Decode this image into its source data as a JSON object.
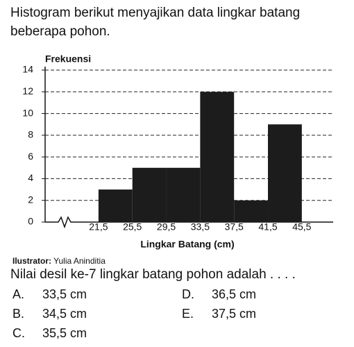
{
  "intro": "Histogram berikut menyajikan data lingkar batang beberapa pohon.",
  "chart_data": {
    "type": "histogram",
    "ylabel": "Frekuensi",
    "xlabel": "Lingkar Batang (cm)",
    "bins": [
      21.5,
      25.5,
      29.5,
      33.5,
      37.5,
      41.5,
      45.5
    ],
    "values": [
      3,
      5,
      5,
      12,
      2,
      9
    ],
    "color": "#1c1c1c",
    "xlim": [
      15.2,
      49.2
    ],
    "xticks": [
      {
        "value": 21.5,
        "label": "21,5"
      },
      {
        "value": 25.5,
        "label": "25,5"
      },
      {
        "value": 29.5,
        "label": "29,5"
      },
      {
        "value": 33.5,
        "label": "33,5"
      },
      {
        "value": 37.5,
        "label": "37,5"
      },
      {
        "value": 41.5,
        "label": "41,5"
      },
      {
        "value": 45.5,
        "label": "45,5"
      }
    ],
    "ylim": [
      0,
      14
    ],
    "yticks": [
      0,
      2,
      4,
      6,
      8,
      10,
      12,
      14
    ],
    "grid": true
  },
  "illustrator": {
    "label": "Ilustrator:",
    "name": "Yulia Aninditia"
  },
  "question": "Nilai desil ke-7 lingkar batang pohon adalah . . . .",
  "options": [
    {
      "letter": "A.",
      "text": "33,5 cm"
    },
    {
      "letter": "B.",
      "text": "34,5 cm"
    },
    {
      "letter": "C.",
      "text": "35,5 cm"
    },
    {
      "letter": "D.",
      "text": "36,5 cm"
    },
    {
      "letter": "E.",
      "text": "37,5 cm"
    }
  ]
}
